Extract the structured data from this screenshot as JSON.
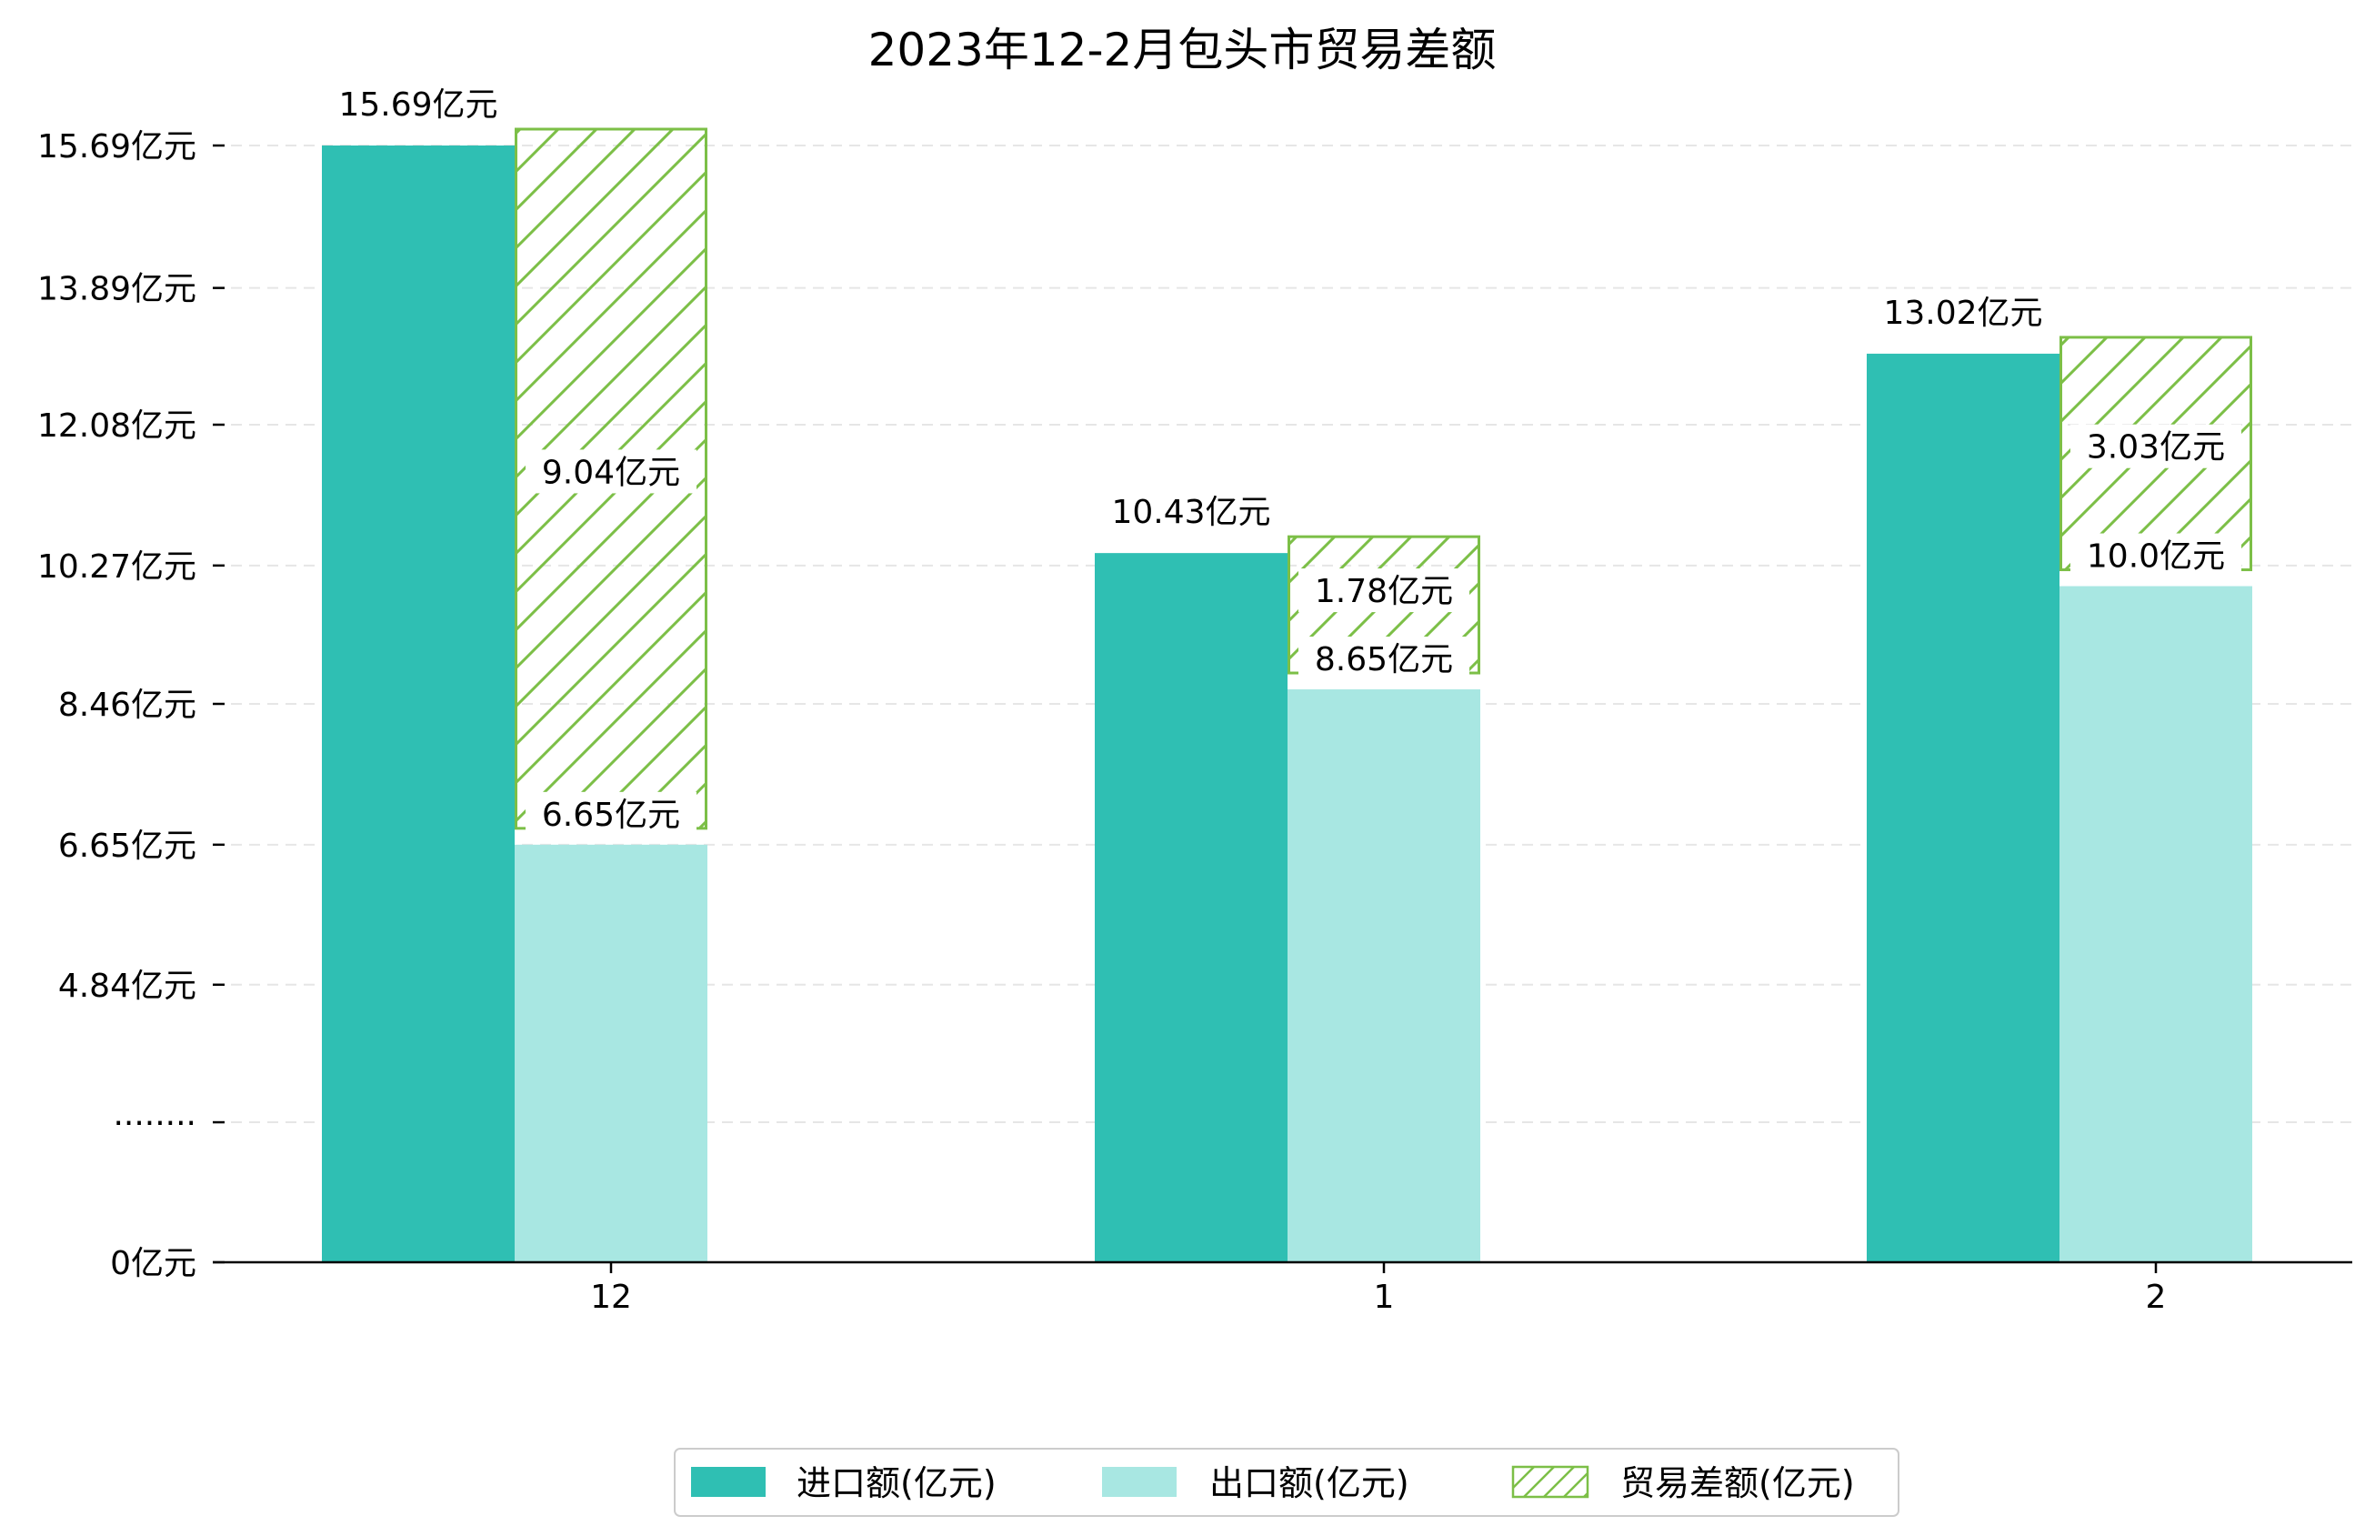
{
  "chart_data": {
    "type": "bar",
    "title": "2023年12-2月包头市贸易差额",
    "categories": [
      "12",
      "1",
      "2"
    ],
    "series": [
      {
        "name": "进口额(亿元)",
        "values": [
          15.69,
          10.43,
          13.02
        ],
        "labels": [
          "15.69亿元",
          "10.43亿元",
          "13.02亿元"
        ],
        "color": "#2fbfb3"
      },
      {
        "name": "出口额(亿元)",
        "values": [
          6.65,
          8.65,
          10.0
        ],
        "labels": [
          "6.65亿元",
          "8.65亿元",
          "10.0亿元"
        ],
        "color": "#a8e7e2"
      },
      {
        "name": "贸易差额(亿元)",
        "values": [
          9.04,
          1.78,
          3.03
        ],
        "labels": [
          "9.04亿元",
          "1.78亿元",
          "3.03亿元"
        ],
        "color": "#7cbf47"
      }
    ],
    "y_ticks": [
      {
        "value": 0,
        "label": "0亿元"
      },
      {
        "value": 3.03,
        "label": "········"
      },
      {
        "value": 4.84,
        "label": "4.84亿元"
      },
      {
        "value": 6.65,
        "label": "6.65亿元"
      },
      {
        "value": 8.46,
        "label": "8.46亿元"
      },
      {
        "value": 10.27,
        "label": "10.27亿元"
      },
      {
        "value": 12.08,
        "label": "12.08亿元"
      },
      {
        "value": 13.89,
        "label": "13.89亿元"
      },
      {
        "value": 15.69,
        "label": "15.69亿元"
      }
    ],
    "ylim": [
      0,
      17
    ],
    "grid": true,
    "legend_position": "bottom-center"
  }
}
